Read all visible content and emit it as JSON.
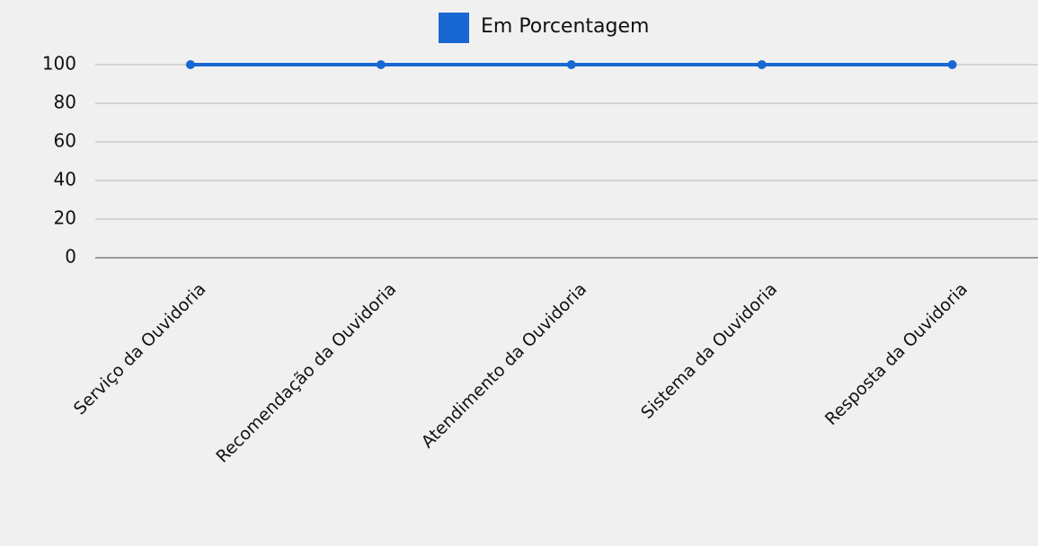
{
  "chart_data": {
    "type": "line",
    "categories": [
      "Serviço da Ouvidoria",
      "Recomendação da Ouvidoria",
      "Atendimento da Ouvidoria",
      "Sistema da Ouvidoria",
      "Resposta da Ouvidoria"
    ],
    "series": [
      {
        "name": "Em Porcentagem",
        "color": "#1967d2",
        "values": [
          100,
          100,
          100,
          100,
          100
        ]
      }
    ],
    "ylim": [
      0,
      100
    ],
    "yticks": [
      0,
      20,
      40,
      60,
      80,
      100
    ],
    "grid": true,
    "legend": "top"
  }
}
